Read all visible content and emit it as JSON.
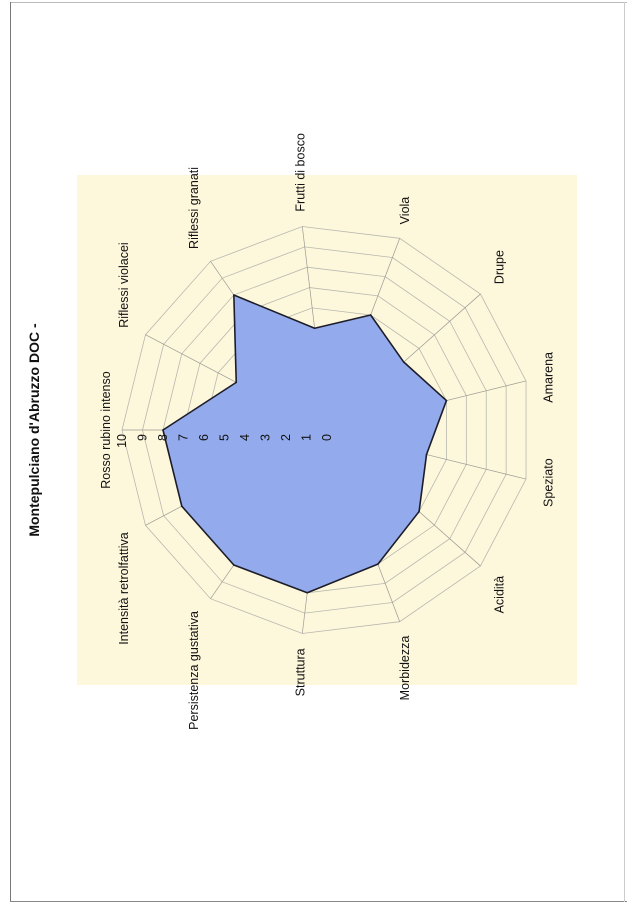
{
  "chart_data": {
    "type": "radar",
    "title": "Montepulciano d'Abruzzo DOC -",
    "categories": [
      "Rosso rubino intenso",
      "Riflessi violacei",
      "Riflessi granati",
      "Frutti di bosco",
      "Viola",
      "Drupe",
      "Amarena",
      "Speziato",
      "Acidità",
      "Morbidezza",
      "Struttura",
      "Persistenza gustativa",
      "Intensità retrolfattiva"
    ],
    "series": [
      {
        "values": [
          8,
          5,
          8,
          5,
          6,
          5,
          6,
          5,
          6,
          7,
          8,
          8,
          8
        ]
      }
    ],
    "range": [
      0,
      10
    ],
    "tick_labels": [
      "0",
      "1",
      "2",
      "3",
      "4",
      "5",
      "6",
      "7",
      "8",
      "9",
      "10"
    ],
    "grid": true,
    "background_color": "#fdf7dc",
    "series_fill": "#93abec",
    "series_stroke": "#1d1d2a"
  }
}
